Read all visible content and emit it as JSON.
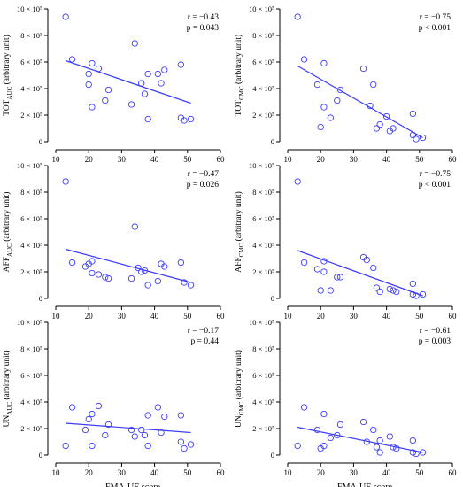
{
  "figure": {
    "xlabel": "FMA-UE score",
    "point_color": "#3b3bff",
    "line_color": "#3b3bff"
  },
  "chart_data": [
    {
      "type": "scatter",
      "ylabel_main": "TOT",
      "ylabel_sub": "AUC",
      "ylabel_rest": " (arbitrary unit)",
      "stats": [
        "r = −0.43",
        "p = 0.043"
      ],
      "xlim": [
        10,
        60
      ],
      "ylim": [
        0,
        1000000
      ],
      "x_ticks": [
        "10",
        "20",
        "30",
        "40",
        "50",
        "60"
      ],
      "y_ticks": [
        "0",
        "2 × 10⁵",
        "4 × 10⁵",
        "6 × 10⁵",
        "8 × 10⁵",
        "10 × 10⁵"
      ],
      "points": [
        [
          13,
          940000
        ],
        [
          15,
          620000
        ],
        [
          20,
          430000
        ],
        [
          20,
          510000
        ],
        [
          21,
          260000
        ],
        [
          21,
          590000
        ],
        [
          23,
          550000
        ],
        [
          25,
          310000
        ],
        [
          26,
          390000
        ],
        [
          33,
          280000
        ],
        [
          34,
          740000
        ],
        [
          36,
          440000
        ],
        [
          37,
          360000
        ],
        [
          38,
          170000
        ],
        [
          38,
          510000
        ],
        [
          41,
          510000
        ],
        [
          42,
          440000
        ],
        [
          43,
          540000
        ],
        [
          48,
          580000
        ],
        [
          48,
          180000
        ],
        [
          49,
          160000
        ],
        [
          51,
          170000
        ]
      ],
      "fit": [
        [
          13,
          610000
        ],
        [
          51,
          290000
        ]
      ]
    },
    {
      "type": "scatter",
      "ylabel_main": "TOT",
      "ylabel_sub": "CMC",
      "ylabel_rest": " (arbitrary unit)",
      "stats": [
        "r = −0.75",
        "p < 0.001"
      ],
      "xlim": [
        10,
        60
      ],
      "ylim": [
        0,
        1000000
      ],
      "x_ticks": [
        "10",
        "20",
        "30",
        "40",
        "50",
        "60"
      ],
      "y_ticks": [
        "0",
        "2 × 10⁵",
        "4 × 10⁵",
        "6 × 10⁵",
        "8 × 10⁵",
        "10 × 10⁵"
      ],
      "points": [
        [
          13,
          940000
        ],
        [
          15,
          620000
        ],
        [
          19,
          430000
        ],
        [
          20,
          110000
        ],
        [
          21,
          590000
        ],
        [
          21,
          260000
        ],
        [
          23,
          180000
        ],
        [
          25,
          310000
        ],
        [
          26,
          390000
        ],
        [
          33,
          550000
        ],
        [
          35,
          270000
        ],
        [
          36,
          430000
        ],
        [
          37,
          100000
        ],
        [
          38,
          130000
        ],
        [
          40,
          190000
        ],
        [
          41,
          80000
        ],
        [
          42,
          100000
        ],
        [
          48,
          210000
        ],
        [
          48,
          50000
        ],
        [
          49,
          20000
        ],
        [
          51,
          30000
        ]
      ],
      "fit": [
        [
          13,
          570000
        ],
        [
          51,
          30000
        ]
      ]
    },
    {
      "type": "scatter",
      "ylabel_main": "AFF",
      "ylabel_sub": "AUC",
      "ylabel_rest": " (arbitrary unit)",
      "stats": [
        "r = −0.47",
        "p = 0.026"
      ],
      "xlim": [
        10,
        60
      ],
      "ylim": [
        0,
        1000000
      ],
      "x_ticks": [
        "10",
        "20",
        "30",
        "40",
        "50",
        "60"
      ],
      "y_ticks": [
        "0",
        "2 × 10⁵",
        "4 × 10⁵",
        "6 × 10⁵",
        "8 × 10⁵",
        "10 × 10⁵"
      ],
      "points": [
        [
          13,
          880000
        ],
        [
          15,
          270000
        ],
        [
          19,
          240000
        ],
        [
          20,
          260000
        ],
        [
          21,
          190000
        ],
        [
          21,
          280000
        ],
        [
          23,
          180000
        ],
        [
          25,
          160000
        ],
        [
          26,
          150000
        ],
        [
          33,
          150000
        ],
        [
          34,
          540000
        ],
        [
          35,
          230000
        ],
        [
          36,
          200000
        ],
        [
          37,
          210000
        ],
        [
          38,
          100000
        ],
        [
          41,
          130000
        ],
        [
          42,
          260000
        ],
        [
          43,
          240000
        ],
        [
          48,
          270000
        ],
        [
          49,
          120000
        ],
        [
          51,
          100000
        ]
      ],
      "fit": [
        [
          13,
          370000
        ],
        [
          51,
          120000
        ]
      ]
    },
    {
      "type": "scatter",
      "ylabel_main": "AFF",
      "ylabel_sub": "CMC",
      "ylabel_rest": " (arbitrary unit)",
      "stats": [
        "r = −0.75",
        "p < 0.001"
      ],
      "xlim": [
        10,
        60
      ],
      "ylim": [
        0,
        1000000
      ],
      "x_ticks": [
        "10",
        "20",
        "30",
        "40",
        "50",
        "60"
      ],
      "y_ticks": [
        "0",
        "2 × 10⁵",
        "4 × 10⁵",
        "6 × 10⁵",
        "8 × 10⁵",
        "10 × 10⁵"
      ],
      "points": [
        [
          13,
          880000
        ],
        [
          15,
          270000
        ],
        [
          19,
          220000
        ],
        [
          20,
          60000
        ],
        [
          21,
          280000
        ],
        [
          21,
          200000
        ],
        [
          23,
          60000
        ],
        [
          25,
          160000
        ],
        [
          26,
          160000
        ],
        [
          33,
          310000
        ],
        [
          34,
          290000
        ],
        [
          36,
          230000
        ],
        [
          37,
          80000
        ],
        [
          38,
          50000
        ],
        [
          41,
          70000
        ],
        [
          42,
          60000
        ],
        [
          43,
          50000
        ],
        [
          48,
          110000
        ],
        [
          48,
          30000
        ],
        [
          49,
          20000
        ],
        [
          51,
          30000
        ]
      ],
      "fit": [
        [
          13,
          360000
        ],
        [
          51,
          20000
        ]
      ]
    },
    {
      "type": "scatter",
      "ylabel_main": "UN",
      "ylabel_sub": "AUC",
      "ylabel_rest": " (arbitrary unit)",
      "stats": [
        "r = −0.17",
        "p = 0.44"
      ],
      "xlim": [
        10,
        60
      ],
      "ylim": [
        0,
        1000000
      ],
      "x_ticks": [
        "10",
        "20",
        "30",
        "40",
        "50",
        "60"
      ],
      "y_ticks": [
        "0",
        "2 × 10⁵",
        "4 × 10⁵",
        "6 × 10⁵",
        "8 × 10⁵",
        "10 × 10⁵"
      ],
      "points": [
        [
          13,
          70000
        ],
        [
          15,
          360000
        ],
        [
          19,
          190000
        ],
        [
          20,
          270000
        ],
        [
          21,
          310000
        ],
        [
          21,
          70000
        ],
        [
          23,
          370000
        ],
        [
          25,
          150000
        ],
        [
          26,
          230000
        ],
        [
          33,
          190000
        ],
        [
          34,
          140000
        ],
        [
          36,
          190000
        ],
        [
          37,
          150000
        ],
        [
          38,
          70000
        ],
        [
          38,
          300000
        ],
        [
          41,
          360000
        ],
        [
          42,
          170000
        ],
        [
          43,
          290000
        ],
        [
          48,
          300000
        ],
        [
          48,
          100000
        ],
        [
          49,
          50000
        ],
        [
          51,
          80000
        ]
      ],
      "fit": [
        [
          13,
          240000
        ],
        [
          51,
          170000
        ]
      ]
    },
    {
      "type": "scatter",
      "ylabel_main": "UN",
      "ylabel_sub": "CMC",
      "ylabel_rest": " (arbitrary unit)",
      "stats": [
        "r = −0.61",
        "p = 0.003"
      ],
      "xlim": [
        10,
        60
      ],
      "ylim": [
        0,
        1000000
      ],
      "x_ticks": [
        "10",
        "20",
        "30",
        "40",
        "50",
        "60"
      ],
      "y_ticks": [
        "0",
        "2 × 10⁵",
        "4 × 10⁵",
        "6 × 10⁵",
        "8 × 10⁵",
        "10 × 10⁵"
      ],
      "points": [
        [
          13,
          70000
        ],
        [
          15,
          360000
        ],
        [
          19,
          190000
        ],
        [
          20,
          50000
        ],
        [
          21,
          310000
        ],
        [
          21,
          70000
        ],
        [
          23,
          130000
        ],
        [
          25,
          150000
        ],
        [
          26,
          230000
        ],
        [
          33,
          250000
        ],
        [
          34,
          100000
        ],
        [
          36,
          190000
        ],
        [
          37,
          60000
        ],
        [
          38,
          20000
        ],
        [
          38,
          110000
        ],
        [
          41,
          140000
        ],
        [
          42,
          60000
        ],
        [
          43,
          50000
        ],
        [
          48,
          110000
        ],
        [
          48,
          20000
        ],
        [
          49,
          10000
        ],
        [
          51,
          20000
        ]
      ],
      "fit": [
        [
          13,
          210000
        ],
        [
          51,
          20000
        ]
      ]
    }
  ]
}
